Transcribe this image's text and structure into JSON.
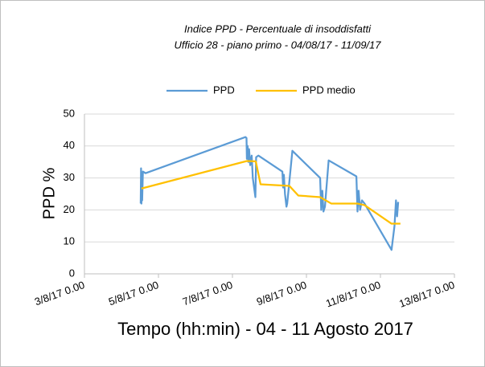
{
  "chart_data": {
    "type": "line",
    "title": "Indice PPD - Percentuale di insoddisfatti",
    "subtitle": "Ufficio 28 - piano primo - 04/08/17 - 11/09/17",
    "x_label": "Tempo (hh:min) - 04 - 11 Agosto 2017",
    "y_label": "PPD %",
    "xlim": [
      3,
      13
    ],
    "xticks": [
      {
        "value": 3,
        "label": "3/8/17 0.00"
      },
      {
        "value": 5,
        "label": "5/8/17 0.00"
      },
      {
        "value": 7,
        "label": "7/8/17 0.00"
      },
      {
        "value": 9,
        "label": "9/8/17 0.00"
      },
      {
        "value": 11,
        "label": "11/8/17 0.00"
      },
      {
        "value": 13,
        "label": "13/8/17 0.00"
      }
    ],
    "ylim": [
      0,
      50
    ],
    "yticks": [
      0,
      10,
      20,
      30,
      40,
      50
    ],
    "grid": true,
    "legend": "top",
    "series": [
      {
        "name": "PPD",
        "color": "#5b9bd5",
        "x": [
          4.52,
          4.53,
          4.54,
          4.55,
          4.56,
          4.58,
          4.65,
          7.35,
          7.38,
          7.39,
          7.41,
          7.43,
          7.45,
          7.48,
          7.52,
          7.55,
          7.62,
          7.64,
          7.7,
          8.35,
          8.37,
          8.39,
          8.42,
          8.46,
          8.48,
          8.62,
          9.37,
          9.4,
          9.43,
          9.46,
          9.5,
          9.6,
          10.35,
          10.38,
          10.41,
          10.45,
          10.5,
          10.57,
          11.3,
          11.38,
          11.42,
          11.45,
          11.48
        ],
        "values": [
          22,
          33,
          22,
          30,
          23,
          32,
          31.5,
          42.8,
          42.5,
          36,
          40,
          35,
          39,
          34,
          37,
          30,
          24,
          36.5,
          37,
          32,
          27,
          31,
          25,
          21,
          22,
          38.5,
          30,
          20,
          26,
          19.5,
          21,
          35.5,
          30.5,
          19.5,
          26,
          20,
          23,
          22,
          7.5,
          15,
          23,
          18,
          22.5
        ]
      },
      {
        "name": "PPD medio",
        "color": "#ffc000",
        "x": [
          4.54,
          7.39,
          7.63,
          7.76,
          8.54,
          8.78,
          9.37,
          9.67,
          10.37,
          10.57,
          11.3,
          11.54
        ],
        "values": [
          26.7,
          35.3,
          35.2,
          28,
          27.5,
          24.5,
          24,
          22,
          22,
          21.5,
          15.7,
          15.7
        ]
      }
    ]
  }
}
